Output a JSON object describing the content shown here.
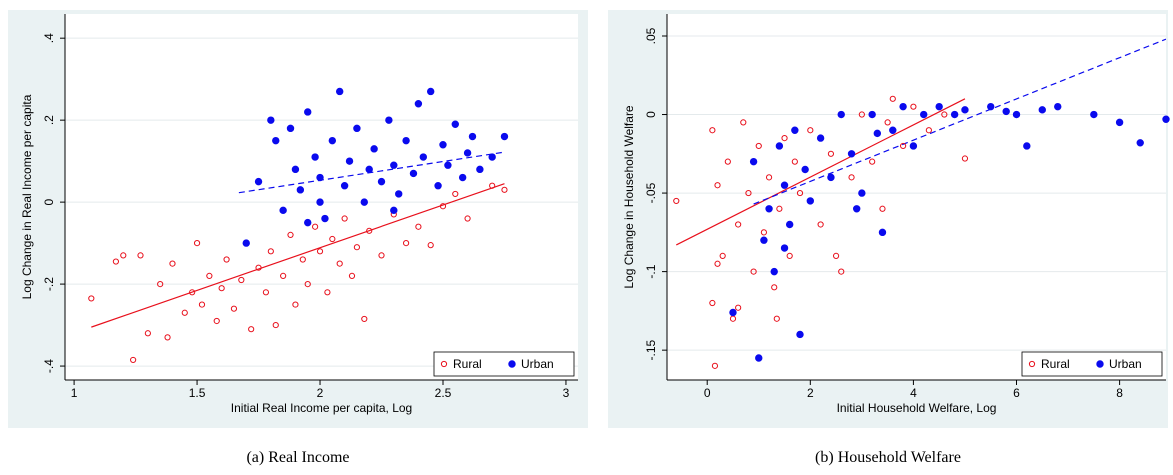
{
  "chart_data": [
    {
      "type": "scatter",
      "caption": "(a) Real Income",
      "xlabel": "Initial Real Income per capita, Log",
      "ylabel": "Log Change in Real Income per capita",
      "xlim": [
        0.963,
        3.049
      ],
      "ylim": [
        -0.434,
        0.459
      ],
      "xticks": [
        1,
        1.5,
        2,
        2.5,
        3
      ],
      "yticks": [
        {
          "value": -0.4,
          "label": "-.4"
        },
        {
          "value": -0.2,
          "label": "-.2"
        },
        0,
        {
          "value": 0.2,
          "label": ".2"
        },
        {
          "value": 0.4,
          "label": ".4"
        }
      ],
      "grid": true,
      "legend": "lower right",
      "series": [
        {
          "name": "Rural",
          "color": "#e8101c",
          "marker": "hollow",
          "x": [
            1.07,
            1.17,
            1.2,
            1.24,
            1.27,
            1.3,
            1.35,
            1.38,
            1.4,
            1.45,
            1.48,
            1.5,
            1.52,
            1.55,
            1.58,
            1.6,
            1.62,
            1.65,
            1.68,
            1.7,
            1.72,
            1.75,
            1.78,
            1.8,
            1.82,
            1.85,
            1.88,
            1.9,
            1.93,
            1.95,
            1.98,
            2.0,
            2.03,
            2.05,
            2.08,
            2.1,
            2.13,
            2.15,
            2.18,
            2.2,
            2.25,
            2.3,
            2.35,
            2.4,
            2.45,
            2.5,
            2.55,
            2.6,
            2.7,
            2.75
          ],
          "y": [
            -0.235,
            -0.145,
            -0.13,
            -0.385,
            -0.13,
            -0.32,
            -0.2,
            -0.33,
            -0.15,
            -0.27,
            -0.22,
            -0.1,
            -0.25,
            -0.18,
            -0.29,
            -0.21,
            -0.14,
            -0.26,
            -0.19,
            -0.1,
            -0.31,
            -0.16,
            -0.22,
            -0.12,
            -0.3,
            -0.18,
            -0.08,
            -0.25,
            -0.14,
            -0.2,
            -0.06,
            -0.12,
            -0.22,
            -0.09,
            -0.15,
            -0.04,
            -0.18,
            -0.11,
            -0.285,
            -0.07,
            -0.13,
            -0.03,
            -0.1,
            -0.06,
            -0.105,
            -0.01,
            0.02,
            -0.04,
            0.04,
            0.03
          ]
        },
        {
          "name": "Urban",
          "color": "#0a0aee",
          "marker": "filled",
          "x": [
            1.7,
            1.75,
            1.8,
            1.82,
            1.85,
            1.88,
            1.9,
            1.92,
            1.95,
            1.98,
            2.0,
            2.02,
            2.05,
            2.08,
            2.1,
            2.12,
            2.15,
            2.18,
            2.2,
            2.22,
            2.25,
            2.28,
            2.3,
            2.32,
            2.35,
            2.38,
            2.4,
            2.42,
            2.45,
            2.48,
            2.5,
            2.52,
            2.55,
            2.58,
            2.6,
            2.62,
            2.65,
            2.7,
            2.75,
            2.3,
            2.0,
            1.95
          ],
          "y": [
            -0.1,
            0.05,
            0.2,
            0.15,
            -0.02,
            0.18,
            0.08,
            0.03,
            0.22,
            0.11,
            0.06,
            -0.04,
            0.15,
            0.27,
            0.04,
            0.1,
            0.18,
            0.0,
            0.08,
            0.13,
            0.05,
            0.2,
            0.09,
            0.02,
            0.15,
            0.07,
            0.24,
            0.11,
            0.27,
            0.04,
            0.14,
            0.09,
            0.19,
            0.06,
            0.12,
            0.16,
            0.08,
            0.11,
            0.16,
            -0.02,
            0.0,
            -0.05
          ]
        }
      ],
      "fit_lines": [
        {
          "color": "#e8101c",
          "dashed": false,
          "x": [
            1.07,
            2.75
          ],
          "y": [
            -0.305,
            0.045
          ]
        },
        {
          "color": "#0a0aee",
          "dashed": true,
          "x": [
            1.67,
            2.75
          ],
          "y": [
            0.023,
            0.122
          ]
        }
      ]
    },
    {
      "type": "scatter",
      "caption": "(b) Household Welfare",
      "xlabel": "Initial Household Welfare, Log",
      "ylabel": "Log Change in Household Welfare",
      "xlim": [
        -0.78,
        8.9
      ],
      "ylim": [
        -0.169,
        0.064
      ],
      "xticks": [
        0,
        2,
        4,
        6,
        8
      ],
      "yticks": [
        {
          "value": -0.15,
          "label": "-.15"
        },
        {
          "value": -0.1,
          "label": "-.1"
        },
        {
          "value": -0.05,
          "label": "-.05"
        },
        0,
        {
          "value": 0.05,
          "label": ".05"
        }
      ],
      "grid": true,
      "legend": "lower right",
      "series": [
        {
          "name": "Rural",
          "color": "#e8101c",
          "marker": "hollow",
          "x": [
            -0.6,
            0.1,
            0.15,
            0.1,
            0.2,
            0.3,
            0.4,
            0.5,
            0.6,
            0.7,
            0.8,
            0.9,
            1.0,
            1.1,
            1.2,
            1.3,
            1.4,
            1.5,
            1.6,
            1.7,
            1.8,
            2.0,
            2.2,
            2.4,
            2.6,
            2.8,
            3.0,
            3.2,
            3.4,
            3.6,
            3.8,
            4.0,
            4.3,
            4.6,
            5.0,
            0.2,
            0.6,
            1.35,
            2.5,
            3.5
          ],
          "y": [
            -0.055,
            -0.01,
            -0.16,
            -0.12,
            -0.045,
            -0.09,
            -0.03,
            -0.13,
            -0.07,
            -0.005,
            -0.05,
            -0.1,
            -0.02,
            -0.075,
            -0.04,
            -0.11,
            -0.06,
            -0.015,
            -0.09,
            -0.03,
            -0.05,
            -0.01,
            -0.07,
            -0.025,
            -0.1,
            -0.04,
            0.0,
            -0.03,
            -0.06,
            0.01,
            -0.02,
            0.005,
            -0.01,
            0.0,
            -0.028,
            -0.095,
            -0.123,
            -0.13,
            -0.09,
            -0.005
          ]
        },
        {
          "name": "Urban",
          "color": "#0a0aee",
          "marker": "filled",
          "x": [
            0.9,
            1.0,
            1.1,
            1.2,
            1.3,
            1.4,
            1.5,
            1.6,
            1.7,
            1.8,
            1.9,
            2.0,
            2.2,
            2.4,
            2.6,
            2.8,
            3.0,
            3.2,
            3.4,
            3.6,
            3.8,
            4.0,
            4.2,
            4.5,
            5.0,
            5.5,
            6.0,
            6.2,
            6.5,
            6.8,
            7.5,
            8.0,
            8.4,
            8.9,
            0.5,
            1.5,
            2.9,
            3.3,
            4.8,
            5.8
          ],
          "y": [
            -0.03,
            -0.155,
            -0.08,
            -0.06,
            -0.1,
            -0.02,
            -0.045,
            -0.07,
            -0.01,
            -0.14,
            -0.035,
            -0.055,
            -0.015,
            -0.04,
            0.0,
            -0.025,
            -0.05,
            0.0,
            -0.075,
            -0.01,
            0.005,
            -0.02,
            0.0,
            0.005,
            0.003,
            0.005,
            0.0,
            -0.02,
            0.003,
            0.005,
            0.0,
            -0.005,
            -0.018,
            -0.003,
            -0.126,
            -0.085,
            -0.06,
            -0.012,
            0.0,
            0.002
          ]
        }
      ],
      "fit_lines": [
        {
          "color": "#e8101c",
          "dashed": false,
          "x": [
            -0.6,
            5.0
          ],
          "y": [
            -0.083,
            0.01
          ]
        },
        {
          "color": "#0a0aee",
          "dashed": true,
          "x": [
            0.9,
            8.9
          ],
          "y": [
            -0.057,
            0.048
          ]
        }
      ]
    }
  ]
}
